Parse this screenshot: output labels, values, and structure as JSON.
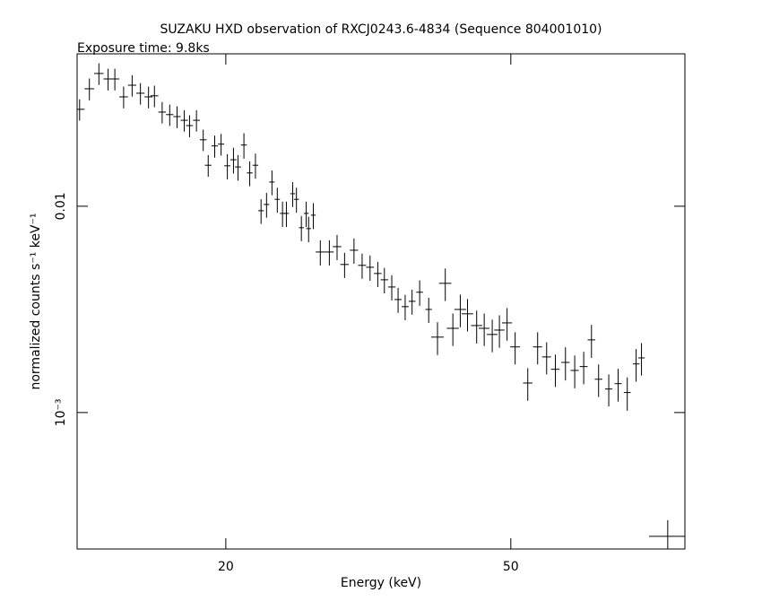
{
  "chart_data": {
    "type": "scatter",
    "title": "SUZAKU HXD observation of RXCJ0243.6-4834 (Sequence 804001010)",
    "subtitle": "Exposure time: 9.8ks",
    "x_label": "Energy (keV)",
    "y_label": "normalized counts s⁻¹ keV⁻¹",
    "xscale": "log",
    "yscale": "log",
    "xlim": [
      12.4,
      87.5
    ],
    "ylim": [
      0.000218,
      0.0548
    ],
    "xticks": [
      20,
      50
    ],
    "yticks": [
      0.01,
      {
        "value": 0.001,
        "label": "10⁻³"
      }
    ],
    "color": "#000000",
    "x": [
      12.5,
      12.9,
      13.3,
      13.7,
      14.0,
      14.4,
      14.8,
      15.2,
      15.6,
      15.9,
      16.3,
      16.7,
      17.1,
      17.5,
      17.8,
      18.2,
      18.6,
      18.9,
      19.3,
      19.7,
      20.1,
      20.5,
      20.8,
      21.2,
      21.6,
      22.0,
      22.4,
      22.8,
      23.2,
      23.6,
      24.0,
      24.3,
      24.8,
      25.1,
      25.5,
      25.9,
      26.1,
      26.5,
      27.1,
      27.9,
      28.6,
      29.3,
      30.2,
      31.0,
      31.8,
      32.6,
      33.3,
      34.1,
      34.8,
      35.6,
      36.4,
      37.3,
      38.4,
      39.5,
      40.5,
      41.5,
      42.5,
      43.5,
      44.8,
      45.9,
      47.1,
      48.2,
      49.4,
      50.7,
      52.8,
      54.5,
      56.1,
      57.7,
      59.6,
      61.4,
      63.2,
      64.8,
      66.3,
      68.5,
      70.6,
      72.7,
      74.8,
      76.1,
      82.8
    ],
    "x_err": [
      0.2,
      0.2,
      0.2,
      0.2,
      0.2,
      0.2,
      0.2,
      0.2,
      0.2,
      0.2,
      0.2,
      0.2,
      0.2,
      0.2,
      0.2,
      0.2,
      0.2,
      0.2,
      0.2,
      0.2,
      0.2,
      0.2,
      0.2,
      0.2,
      0.2,
      0.2,
      0.2,
      0.2,
      0.2,
      0.2,
      0.2,
      0.2,
      0.2,
      0.2,
      0.2,
      0.2,
      0.2,
      0.2,
      0.4,
      0.4,
      0.4,
      0.4,
      0.4,
      0.4,
      0.4,
      0.4,
      0.4,
      0.4,
      0.4,
      0.4,
      0.4,
      0.4,
      0.4,
      0.8,
      0.8,
      0.8,
      0.8,
      0.8,
      0.8,
      0.8,
      0.8,
      0.8,
      0.8,
      0.8,
      0.8,
      0.8,
      0.8,
      0.8,
      0.8,
      0.8,
      0.8,
      0.8,
      0.8,
      0.8,
      0.8,
      0.8,
      0.8,
      0.8,
      4.8
    ],
    "values": [
      0.0295,
      0.0371,
      0.044,
      0.0414,
      0.0414,
      0.0339,
      0.0386,
      0.0353,
      0.0339,
      0.0343,
      0.0286,
      0.0278,
      0.0272,
      0.0261,
      0.0246,
      0.0261,
      0.021,
      0.0158,
      0.0196,
      0.02,
      0.0157,
      0.0168,
      0.0155,
      0.0198,
      0.0145,
      0.0158,
      0.00951,
      0.0102,
      0.0131,
      0.0108,
      0.00923,
      0.00923,
      0.0115,
      0.0108,
      0.00787,
      0.00923,
      0.00779,
      0.00905,
      0.006,
      0.006,
      0.00637,
      0.00522,
      0.00612,
      0.00517,
      0.00506,
      0.00472,
      0.0044,
      0.00406,
      0.00353,
      0.00326,
      0.00346,
      0.00383,
      0.00316,
      0.00232,
      0.00423,
      0.00256,
      0.00316,
      0.00301,
      0.00264,
      0.00256,
      0.00239,
      0.00251,
      0.00272,
      0.00208,
      0.00139,
      0.00208,
      0.00186,
      0.00162,
      0.00175,
      0.0016,
      0.00167,
      0.00225,
      0.00145,
      0.0013,
      0.00138,
      0.00125,
      0.00172,
      0.00184,
      0.000251
    ],
    "y_err": [
      0.0035,
      0.0045,
      0.0053,
      0.005,
      0.005,
      0.0041,
      0.0046,
      0.0042,
      0.0041,
      0.0041,
      0.0034,
      0.0033,
      0.0033,
      0.0031,
      0.003,
      0.0031,
      0.0025,
      0.0019,
      0.0024,
      0.0024,
      0.0022,
      0.0024,
      0.0022,
      0.0028,
      0.002,
      0.0022,
      0.0013,
      0.0014,
      0.0018,
      0.0015,
      0.0013,
      0.0013,
      0.0016,
      0.0015,
      0.0011,
      0.0013,
      0.0011,
      0.0013,
      0.00084,
      0.00084,
      0.00089,
      0.00073,
      0.00086,
      0.00072,
      0.00071,
      0.00066,
      0.00062,
      0.00057,
      0.00049,
      0.00046,
      0.00048,
      0.00054,
      0.00044,
      0.00042,
      0.00076,
      0.00046,
      0.00057,
      0.00054,
      0.00048,
      0.00046,
      0.00043,
      0.00045,
      0.00049,
      0.00037,
      0.00025,
      0.00037,
      0.00033,
      0.00029,
      0.00032,
      0.00029,
      0.0003,
      0.00041,
      0.00026,
      0.00023,
      0.00025,
      0.00023,
      0.00031,
      0.00033,
      5e-05
    ]
  }
}
